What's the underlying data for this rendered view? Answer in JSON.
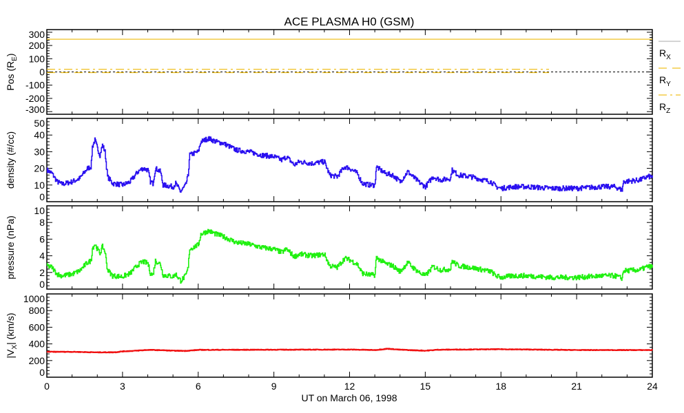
{
  "chart_data": [
    {
      "type": "line",
      "title": "ACE PLASMA H0 (GSM)",
      "ylabel": "Pos (R_E)",
      "ylabel_main": "Pos (R",
      "ylabel_sub": "E",
      "ylabel_end": ")",
      "ylim": [
        -320,
        320
      ],
      "yticks": [
        300,
        200,
        100,
        0,
        -100,
        -200,
        -300
      ],
      "ytick_labels": [
        "300",
        "200",
        "100",
        "0",
        "-100",
        "-200",
        "-300"
      ],
      "color": "#f0c020",
      "series": [
        {
          "name": "R_X",
          "label_main": "R",
          "label_sub": "X",
          "style": "solid",
          "points": [
            [
              0,
              247
            ],
            [
              24,
              247
            ]
          ]
        },
        {
          "name": "R_Y",
          "label_main": "R",
          "label_sub": "Y",
          "style": "dashed",
          "points": [
            [
              0,
              -5
            ],
            [
              24,
              -5
            ]
          ]
        },
        {
          "name": "R_Z",
          "label_main": "R",
          "label_sub": "Z",
          "style": "dashdot",
          "points": [
            [
              0,
              20
            ],
            [
              24,
              20
            ]
          ]
        }
      ],
      "zero_line": true,
      "legend_placement": "right"
    },
    {
      "type": "line",
      "ylabel": "density (#/cc)",
      "ylim": [
        0,
        50
      ],
      "yticks": [
        50,
        40,
        30,
        20,
        10,
        0
      ],
      "ytick_labels": [
        "50",
        "40",
        "30",
        "20",
        "10",
        "0"
      ],
      "color": "#2a10f0",
      "series": [
        {
          "name": "density",
          "points": [
            [
              0,
              19
            ],
            [
              0.2,
              17
            ],
            [
              0.4,
              12
            ],
            [
              0.6,
              10.5
            ],
            [
              1,
              12
            ],
            [
              1.3,
              14
            ],
            [
              1.6,
              20
            ],
            [
              1.75,
              21
            ],
            [
              1.8,
              33
            ],
            [
              1.9,
              37
            ],
            [
              2.0,
              32
            ],
            [
              2.1,
              28
            ],
            [
              2.2,
              34
            ],
            [
              2.3,
              30
            ],
            [
              2.4,
              15
            ],
            [
              2.6,
              11
            ],
            [
              3,
              10
            ],
            [
              3.3,
              12
            ],
            [
              3.6,
              18
            ],
            [
              3.8,
              20
            ],
            [
              4.0,
              19
            ],
            [
              4.1,
              12
            ],
            [
              4.2,
              11
            ],
            [
              4.3,
              20
            ],
            [
              4.5,
              18
            ],
            [
              4.6,
              10
            ],
            [
              5,
              9
            ],
            [
              5.1,
              11
            ],
            [
              5.3,
              6
            ],
            [
              5.5,
              10
            ],
            [
              5.6,
              16
            ],
            [
              5.65,
              28
            ],
            [
              6,
              30
            ],
            [
              6.1,
              36
            ],
            [
              6.4,
              38
            ],
            [
              6.7,
              36
            ],
            [
              7,
              35
            ],
            [
              7.5,
              31
            ],
            [
              8,
              30
            ],
            [
              8.5,
              28
            ],
            [
              9,
              27
            ],
            [
              9.3,
              25
            ],
            [
              9.5,
              27
            ],
            [
              9.8,
              22
            ],
            [
              10,
              24
            ],
            [
              10.5,
              23
            ],
            [
              11,
              24
            ],
            [
              11.2,
              16
            ],
            [
              11.5,
              15
            ],
            [
              11.8,
              21
            ],
            [
              12,
              20
            ],
            [
              12.3,
              17
            ],
            [
              12.5,
              11
            ],
            [
              12.8,
              10
            ],
            [
              13,
              10
            ],
            [
              13.05,
              21
            ],
            [
              13.4,
              17
            ],
            [
              13.7,
              16
            ],
            [
              14,
              12
            ],
            [
              14.3,
              18
            ],
            [
              14.5,
              15
            ],
            [
              14.8,
              11
            ],
            [
              15,
              9
            ],
            [
              15.3,
              15
            ],
            [
              15.6,
              13
            ],
            [
              16,
              14
            ],
            [
              16.05,
              19
            ],
            [
              16.3,
              16
            ],
            [
              16.8,
              15
            ],
            [
              17.3,
              13
            ],
            [
              17.6,
              12
            ],
            [
              17.8,
              9
            ],
            [
              18,
              8
            ],
            [
              18.5,
              9
            ],
            [
              19,
              9
            ],
            [
              20,
              8
            ],
            [
              21,
              8
            ],
            [
              22,
              9
            ],
            [
              22.5,
              9
            ],
            [
              22.8,
              7
            ],
            [
              22.85,
              12
            ],
            [
              23.5,
              13
            ],
            [
              23.8,
              15
            ],
            [
              24,
              15
            ]
          ]
        }
      ]
    },
    {
      "type": "line",
      "ylabel": "pressure (nPa)",
      "ylim": [
        0,
        10
      ],
      "yticks": [
        10,
        8,
        6,
        4,
        2,
        0
      ],
      "ytick_labels": [
        "10",
        "8",
        "6",
        "4",
        "2",
        "0"
      ],
      "color": "#20f010",
      "series": [
        {
          "name": "pressure",
          "points": [
            [
              0,
              2.8
            ],
            [
              0.2,
              2.6
            ],
            [
              0.4,
              1.8
            ],
            [
              0.6,
              1.6
            ],
            [
              1,
              1.8
            ],
            [
              1.3,
              2.2
            ],
            [
              1.6,
              3.2
            ],
            [
              1.75,
              3.4
            ],
            [
              1.8,
              4.9
            ],
            [
              1.9,
              5.4
            ],
            [
              2.0,
              4.8
            ],
            [
              2.1,
              4.3
            ],
            [
              2.2,
              5.1
            ],
            [
              2.3,
              4.5
            ],
            [
              2.4,
              2.3
            ],
            [
              2.6,
              1.6
            ],
            [
              3,
              1.5
            ],
            [
              3.3,
              1.9
            ],
            [
              3.6,
              2.9
            ],
            [
              3.8,
              3.3
            ],
            [
              4.0,
              3.1
            ],
            [
              4.1,
              1.9
            ],
            [
              4.2,
              1.7
            ],
            [
              4.3,
              3.4
            ],
            [
              4.5,
              3.0
            ],
            [
              4.6,
              1.7
            ],
            [
              5,
              1.5
            ],
            [
              5.1,
              1.8
            ],
            [
              5.3,
              1.0
            ],
            [
              5.5,
              1.6
            ],
            [
              5.6,
              2.6
            ],
            [
              5.65,
              4.8
            ],
            [
              6,
              5.3
            ],
            [
              6.1,
              6.6
            ],
            [
              6.4,
              7.0
            ],
            [
              6.7,
              6.6
            ],
            [
              7,
              6.3
            ],
            [
              7.5,
              5.6
            ],
            [
              8,
              5.4
            ],
            [
              8.5,
              5.0
            ],
            [
              9,
              4.8
            ],
            [
              9.3,
              4.4
            ],
            [
              9.5,
              4.8
            ],
            [
              9.8,
              3.9
            ],
            [
              10,
              4.2
            ],
            [
              10.5,
              4.0
            ],
            [
              11,
              4.2
            ],
            [
              11.2,
              2.8
            ],
            [
              11.5,
              2.6
            ],
            [
              11.8,
              3.7
            ],
            [
              12,
              3.5
            ],
            [
              12.3,
              3.0
            ],
            [
              12.5,
              1.9
            ],
            [
              12.8,
              1.7
            ],
            [
              13,
              1.7
            ],
            [
              13.05,
              3.8
            ],
            [
              13.4,
              3.1
            ],
            [
              13.7,
              2.8
            ],
            [
              14,
              2.1
            ],
            [
              14.3,
              3.2
            ],
            [
              14.5,
              2.6
            ],
            [
              14.8,
              1.9
            ],
            [
              15,
              1.6
            ],
            [
              15.3,
              2.7
            ],
            [
              15.6,
              2.3
            ],
            [
              16,
              2.4
            ],
            [
              16.05,
              3.4
            ],
            [
              16.3,
              2.8
            ],
            [
              16.8,
              2.6
            ],
            [
              17.3,
              2.3
            ],
            [
              17.6,
              2.1
            ],
            [
              17.8,
              1.6
            ],
            [
              18,
              1.4
            ],
            [
              18.5,
              1.6
            ],
            [
              19,
              1.6
            ],
            [
              20,
              1.4
            ],
            [
              21,
              1.4
            ],
            [
              22,
              1.6
            ],
            [
              22.5,
              1.6
            ],
            [
              22.8,
              1.3
            ],
            [
              22.85,
              2.2
            ],
            [
              23.5,
              2.3
            ],
            [
              23.8,
              2.7
            ],
            [
              24,
              2.7
            ]
          ]
        }
      ]
    },
    {
      "type": "line",
      "ylabel": "|V_X| (km/s)",
      "ylabel_main": "|V",
      "ylabel_sub": "X",
      "ylabel_end": "| (km/s)",
      "ylim": [
        0,
        1000
      ],
      "yticks": [
        1000,
        800,
        600,
        400,
        200,
        0
      ],
      "ytick_labels": [
        "1000",
        "800",
        "600",
        "400",
        "200",
        "0"
      ],
      "color": "#f01010",
      "series": [
        {
          "name": "Vx",
          "points": [
            [
              0,
              305
            ],
            [
              1,
              305
            ],
            [
              2,
              298
            ],
            [
              2.7,
              300
            ],
            [
              3,
              310
            ],
            [
              3.5,
              318
            ],
            [
              4,
              328
            ],
            [
              4.5,
              325
            ],
            [
              5,
              318
            ],
            [
              5.5,
              316
            ],
            [
              6,
              328
            ],
            [
              9,
              330
            ],
            [
              12,
              332
            ],
            [
              13,
              326
            ],
            [
              13.5,
              342
            ],
            [
              14,
              330
            ],
            [
              15,
              318
            ],
            [
              15.5,
              330
            ],
            [
              18,
              336
            ],
            [
              21,
              326
            ],
            [
              24,
              326
            ]
          ]
        }
      ],
      "xlabel": "UT on March 06, 1998",
      "xlim": [
        0,
        24
      ],
      "xticks": [
        0,
        3,
        6,
        9,
        12,
        15,
        18,
        21,
        24
      ],
      "xtick_labels": [
        "0",
        "3",
        "6",
        "9",
        "12",
        "15",
        "18",
        "21",
        "24"
      ]
    }
  ]
}
